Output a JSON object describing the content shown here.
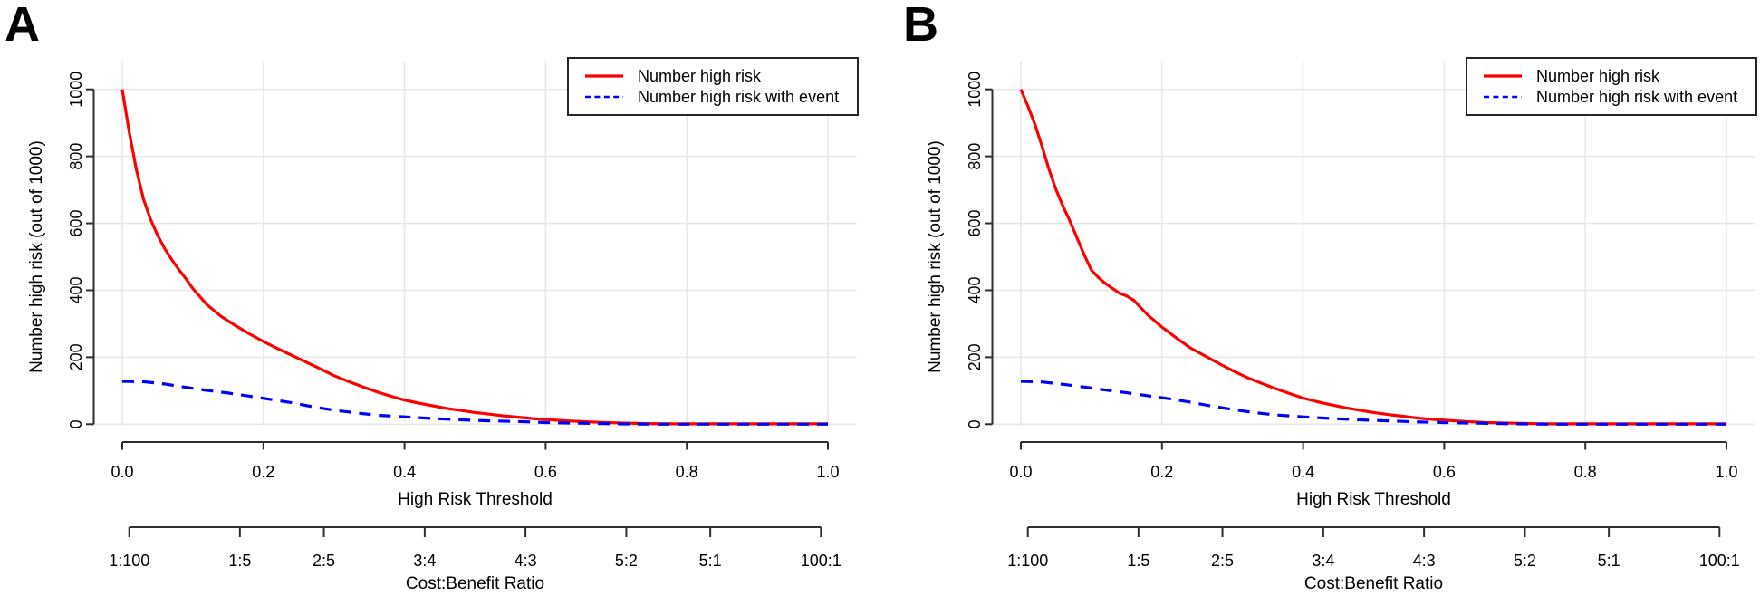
{
  "figure": {
    "panels": [
      {
        "label": "A"
      },
      {
        "label": "B"
      }
    ]
  },
  "legend": {
    "items": [
      {
        "label": "Number high risk",
        "color": "#ff0000",
        "dash": "solid"
      },
      {
        "label": "Number high risk with event",
        "color": "#0000ff",
        "dash": "dashed"
      }
    ]
  },
  "colors": {
    "high_risk_line": "#ff0000",
    "high_risk_event_line": "#0000ff",
    "grid": "#e8e8e8",
    "axis": "#2e2e2e"
  },
  "chart_data": [
    {
      "type": "line",
      "panel": "A",
      "title": "",
      "xlabel": "High Risk Threshold",
      "ylabel": "Number high risk (out of 1000)",
      "x2label": "Cost:Benefit Ratio",
      "xlim": [
        0,
        1
      ],
      "ylim": [
        0,
        1000
      ],
      "grid": true,
      "legend_position": "topright",
      "xticks": [
        0.0,
        0.2,
        0.4,
        0.6,
        0.8,
        1.0
      ],
      "xtick_labels": [
        "0.0",
        "0.2",
        "0.4",
        "0.6",
        "0.8",
        "1.0"
      ],
      "yticks": [
        0,
        200,
        400,
        600,
        800,
        1000
      ],
      "ytick_labels": [
        "0",
        "200",
        "400",
        "600",
        "800",
        "1000"
      ],
      "cost_benefit_ticks": [
        {
          "label": "1:100",
          "threshold": 0.0099
        },
        {
          "label": "1:5",
          "threshold": 0.1667
        },
        {
          "label": "2:5",
          "threshold": 0.2857
        },
        {
          "label": "3:4",
          "threshold": 0.4286
        },
        {
          "label": "4:3",
          "threshold": 0.5714
        },
        {
          "label": "5:2",
          "threshold": 0.7143
        },
        {
          "label": "5:1",
          "threshold": 0.8333
        },
        {
          "label": "100:1",
          "threshold": 0.9901
        }
      ],
      "series": [
        {
          "name": "Number high risk",
          "color": "#ff0000",
          "dash": "solid",
          "x": [
            0,
            0.005,
            0.01,
            0.02,
            0.03,
            0.04,
            0.05,
            0.06,
            0.07,
            0.08,
            0.09,
            0.1,
            0.12,
            0.14,
            0.16,
            0.18,
            0.2,
            0.22,
            0.24,
            0.26,
            0.28,
            0.3,
            0.32,
            0.34,
            0.36,
            0.38,
            0.4,
            0.42,
            0.44,
            0.46,
            0.48,
            0.5,
            0.52,
            0.54,
            0.56,
            0.58,
            0.6,
            0.63,
            0.66,
            0.7,
            0.74,
            0.78,
            0.82,
            0.86,
            0.9,
            0.95,
            1.0
          ],
          "y": [
            1000,
            935,
            870,
            760,
            672,
            612,
            565,
            525,
            492,
            462,
            435,
            405,
            357,
            322,
            295,
            270,
            247,
            226,
            206,
            186,
            166,
            145,
            128,
            112,
            97,
            84,
            72,
            63,
            55,
            47,
            41,
            35,
            30,
            25,
            21,
            17,
            14,
            10,
            7,
            4,
            2,
            1,
            1,
            1,
            1,
            1,
            1
          ]
        },
        {
          "name": "Number high risk with event",
          "color": "#0000ff",
          "dash": "dashed",
          "x": [
            0,
            0.03,
            0.06,
            0.09,
            0.12,
            0.15,
            0.18,
            0.21,
            0.24,
            0.27,
            0.3,
            0.33,
            0.36,
            0.4,
            0.44,
            0.48,
            0.52,
            0.56,
            0.6,
            0.65,
            0.7,
            0.75,
            0.8,
            0.9,
            1.0
          ],
          "y": [
            128,
            127,
            120,
            110,
            101,
            93,
            84,
            74,
            64,
            52,
            42,
            34,
            27,
            22,
            17,
            13,
            10,
            8,
            5,
            3,
            1,
            0,
            0,
            0,
            0
          ]
        }
      ]
    },
    {
      "type": "line",
      "panel": "B",
      "title": "",
      "xlabel": "High Risk Threshold",
      "ylabel": "Number high risk (out of 1000)",
      "x2label": "Cost:Benefit Ratio",
      "xlim": [
        0,
        1
      ],
      "ylim": [
        0,
        1000
      ],
      "grid": true,
      "legend_position": "topright",
      "xticks": [
        0.0,
        0.2,
        0.4,
        0.6,
        0.8,
        1.0
      ],
      "xtick_labels": [
        "0.0",
        "0.2",
        "0.4",
        "0.6",
        "0.8",
        "1.0"
      ],
      "yticks": [
        0,
        200,
        400,
        600,
        800,
        1000
      ],
      "ytick_labels": [
        "0",
        "200",
        "400",
        "600",
        "800",
        "1000"
      ],
      "cost_benefit_ticks": [
        {
          "label": "1:100",
          "threshold": 0.0099
        },
        {
          "label": "1:5",
          "threshold": 0.1667
        },
        {
          "label": "2:5",
          "threshold": 0.2857
        },
        {
          "label": "3:4",
          "threshold": 0.4286
        },
        {
          "label": "4:3",
          "threshold": 0.5714
        },
        {
          "label": "5:2",
          "threshold": 0.7143
        },
        {
          "label": "5:1",
          "threshold": 0.8333
        },
        {
          "label": "100:1",
          "threshold": 0.9901
        }
      ],
      "series": [
        {
          "name": "Number high risk",
          "color": "#ff0000",
          "dash": "solid",
          "x": [
            0,
            0.005,
            0.01,
            0.02,
            0.03,
            0.04,
            0.05,
            0.06,
            0.07,
            0.08,
            0.09,
            0.1,
            0.11,
            0.12,
            0.13,
            0.14,
            0.15,
            0.16,
            0.17,
            0.18,
            0.2,
            0.22,
            0.24,
            0.26,
            0.28,
            0.3,
            0.32,
            0.34,
            0.36,
            0.38,
            0.4,
            0.42,
            0.44,
            0.46,
            0.48,
            0.5,
            0.52,
            0.54,
            0.56,
            0.58,
            0.6,
            0.63,
            0.66,
            0.7,
            0.74,
            0.78,
            0.82,
            0.86,
            0.9,
            0.95,
            1.0
          ],
          "y": [
            1000,
            975,
            950,
            895,
            830,
            760,
            700,
            650,
            605,
            555,
            505,
            460,
            438,
            420,
            405,
            391,
            383,
            370,
            348,
            326,
            290,
            258,
            228,
            205,
            182,
            160,
            140,
            123,
            107,
            92,
            78,
            67,
            58,
            49,
            42,
            35,
            29,
            24,
            19,
            15,
            12,
            8,
            5,
            3,
            1,
            1,
            1,
            1,
            1,
            1,
            1
          ]
        },
        {
          "name": "Number high risk with event",
          "color": "#0000ff",
          "dash": "dashed",
          "x": [
            0,
            0.03,
            0.06,
            0.09,
            0.12,
            0.15,
            0.18,
            0.21,
            0.24,
            0.27,
            0.3,
            0.33,
            0.36,
            0.4,
            0.44,
            0.48,
            0.52,
            0.56,
            0.6,
            0.65,
            0.7,
            0.75,
            0.8,
            0.9,
            1.0
          ],
          "y": [
            128,
            126,
            119,
            111,
            102,
            94,
            85,
            76,
            66,
            54,
            44,
            35,
            28,
            22,
            17,
            13,
            10,
            7,
            5,
            3,
            1,
            0,
            0,
            0,
            0
          ]
        }
      ]
    }
  ]
}
